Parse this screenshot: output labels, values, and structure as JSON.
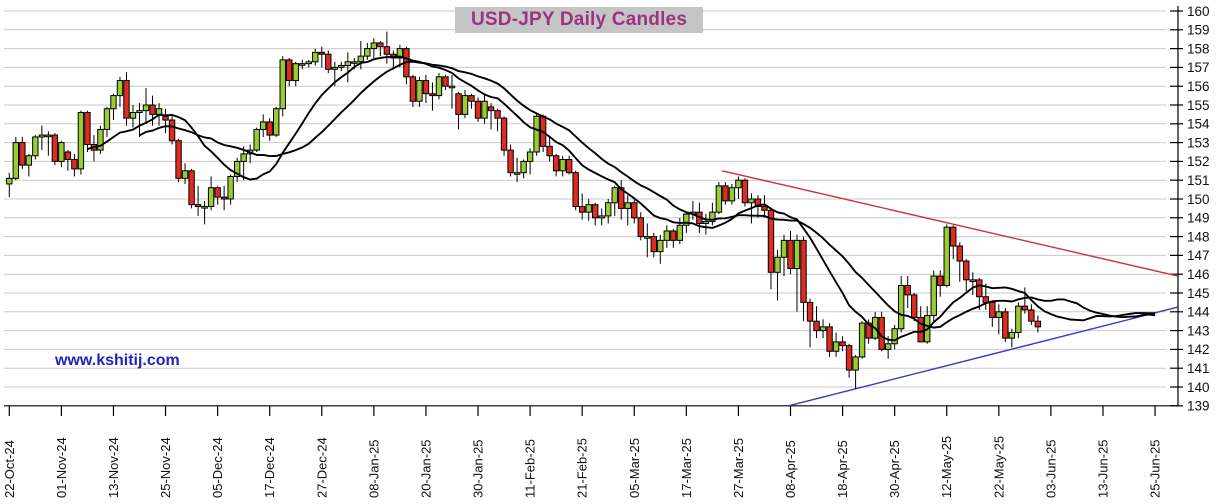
{
  "chart_data": {
    "type": "candlestick",
    "title": "USD-JPY Daily Candles",
    "watermark": "www.kshitij.com",
    "colors": {
      "up_candle": "#99cc33",
      "down_candle": "#e02b20",
      "candle_outline": "#000000",
      "moving_average": "#000000",
      "resistance_line": "#cc3333",
      "support_line": "#3a3abd",
      "gridline": "#c9c9c9",
      "axis": "#000000",
      "tick_label": "#111111",
      "title_color": "#9c3382",
      "title_bg": "#c5c5c5",
      "watermark_color": "#2222bb"
    },
    "y_axis": {
      "min": 139,
      "max": 160,
      "step": 1,
      "side": "right",
      "tick_labels": [
        "160",
        "159",
        "158",
        "157",
        "156",
        "155",
        "154",
        "153",
        "152",
        "151",
        "150",
        "149",
        "148",
        "147",
        "146",
        "145",
        "144",
        "143",
        "142",
        "141",
        "140",
        "139"
      ]
    },
    "x_axis": {
      "label_step": 8,
      "labels": [
        "22-Oct-24",
        "01-Nov-24",
        "13-Nov-24",
        "25-Nov-24",
        "05-Dec-24",
        "17-Dec-24",
        "27-Dec-24",
        "08-Jan-25",
        "20-Jan-25",
        "30-Jan-25",
        "11-Feb-25",
        "21-Feb-25",
        "05-Mar-25",
        "17-Mar-25",
        "27-Mar-25",
        "08-Apr-25",
        "18-Apr-25",
        "30-Apr-25",
        "12-May-25",
        "22-May-25",
        "03-Jun-25",
        "13-Jun-25",
        "25-Jun-25"
      ]
    },
    "candles": [
      [
        150.8,
        151.4,
        150.1,
        151.1
      ],
      [
        151.1,
        153.3,
        151.0,
        153.0
      ],
      [
        153.0,
        153.3,
        151.6,
        151.8
      ],
      [
        151.8,
        152.4,
        151.2,
        152.3
      ],
      [
        152.3,
        153.4,
        152.1,
        153.3
      ],
      [
        153.3,
        153.9,
        152.6,
        153.4
      ],
      [
        153.4,
        153.6,
        152.3,
        153.4
      ],
      [
        153.4,
        153.5,
        151.8,
        152.0
      ],
      [
        152.0,
        153.1,
        151.7,
        153.0
      ],
      [
        152.5,
        152.6,
        151.5,
        152.1
      ],
      [
        152.1,
        152.4,
        151.2,
        151.6
      ],
      [
        151.6,
        154.7,
        151.3,
        154.6
      ],
      [
        154.6,
        154.7,
        152.5,
        152.9
      ],
      [
        152.9,
        153.4,
        152.0,
        152.6
      ],
      [
        152.6,
        153.9,
        152.4,
        153.7
      ],
      [
        153.7,
        154.9,
        153.3,
        154.8
      ],
      [
        154.8,
        155.6,
        154.2,
        155.5
      ],
      [
        155.5,
        156.5,
        154.9,
        156.3
      ],
      [
        156.3,
        156.75,
        153.9,
        154.3
      ],
      [
        154.3,
        155.0,
        153.8,
        154.6
      ],
      [
        154.6,
        155.1,
        153.3,
        154.7
      ],
      [
        154.7,
        155.9,
        154.0,
        155.0
      ],
      [
        155.0,
        155.5,
        153.9,
        154.5
      ],
      [
        154.5,
        155.1,
        153.9,
        154.8
      ],
      [
        154.4,
        154.8,
        153.5,
        154.2
      ],
      [
        154.2,
        154.4,
        152.9,
        153.1
      ],
      [
        153.1,
        153.2,
        150.9,
        151.1
      ],
      [
        151.1,
        151.9,
        150.8,
        151.5
      ],
      [
        151.5,
        151.6,
        149.5,
        149.7
      ],
      [
        149.7,
        150.7,
        149.1,
        149.6
      ],
      [
        149.6,
        149.9,
        148.65,
        149.6
      ],
      [
        149.6,
        151.2,
        149.4,
        150.6
      ],
      [
        150.6,
        150.7,
        149.7,
        150.1
      ],
      [
        150.1,
        150.7,
        149.4,
        150.0
      ],
      [
        150.0,
        151.3,
        149.7,
        151.2
      ],
      [
        151.2,
        152.2,
        150.9,
        152.0
      ],
      [
        152.0,
        152.8,
        151.0,
        152.4
      ],
      [
        152.4,
        152.9,
        151.9,
        152.6
      ],
      [
        152.6,
        153.8,
        152.5,
        153.7
      ],
      [
        153.7,
        154.5,
        153.3,
        154.1
      ],
      [
        154.1,
        154.3,
        153.1,
        153.4
      ],
      [
        153.4,
        154.9,
        153.3,
        154.8
      ],
      [
        154.8,
        157.6,
        154.4,
        157.4
      ],
      [
        157.4,
        157.5,
        156.0,
        156.3
      ],
      [
        156.3,
        157.3,
        156.0,
        157.2
      ],
      [
        157.2,
        157.4,
        156.9,
        157.2
      ],
      [
        157.2,
        157.4,
        157.0,
        157.3
      ],
      [
        157.3,
        158.0,
        157.1,
        157.8
      ],
      [
        157.8,
        158.1,
        157.0,
        157.7
      ],
      [
        157.7,
        157.9,
        156.7,
        156.9
      ],
      [
        156.9,
        157.3,
        156.0,
        157.0
      ],
      [
        157.0,
        157.3,
        156.8,
        157.1
      ],
      [
        157.1,
        157.8,
        156.2,
        157.3
      ],
      [
        157.3,
        157.5,
        156.9,
        157.3
      ],
      [
        157.3,
        158.4,
        156.9,
        157.6
      ],
      [
        157.6,
        158.3,
        157.4,
        158.0
      ],
      [
        158.0,
        158.55,
        157.5,
        158.3
      ],
      [
        158.3,
        158.4,
        157.6,
        158.1
      ],
      [
        158.1,
        158.9,
        157.2,
        157.7
      ],
      [
        157.7,
        157.9,
        156.9,
        157.5
      ],
      [
        157.5,
        158.2,
        157.0,
        158.0
      ],
      [
        158.0,
        158.1,
        156.1,
        156.5
      ],
      [
        156.5,
        156.6,
        154.9,
        155.2
      ],
      [
        155.2,
        156.5,
        154.9,
        156.3
      ],
      [
        156.3,
        156.6,
        155.1,
        155.6
      ],
      [
        155.6,
        156.2,
        154.7,
        155.5
      ],
      [
        155.5,
        156.7,
        155.3,
        156.5
      ],
      [
        156.5,
        156.6,
        155.8,
        156.0
      ],
      [
        156.0,
        156.6,
        154.8,
        156.0
      ],
      [
        155.6,
        155.7,
        153.7,
        154.5
      ],
      [
        154.5,
        155.8,
        154.3,
        155.5
      ],
      [
        155.5,
        155.6,
        154.8,
        155.2
      ],
      [
        155.2,
        155.4,
        154.1,
        154.3
      ],
      [
        154.3,
        155.6,
        154.0,
        155.2
      ],
      [
        154.9,
        155.1,
        153.7,
        154.7
      ],
      [
        154.7,
        154.8,
        153.6,
        154.3
      ],
      [
        154.3,
        154.4,
        152.3,
        152.6
      ],
      [
        152.6,
        152.9,
        151.2,
        151.4
      ],
      [
        151.4,
        152.2,
        150.9,
        151.4
      ],
      [
        151.4,
        152.1,
        151.1,
        152.0
      ],
      [
        152.0,
        152.7,
        151.3,
        152.5
      ],
      [
        152.5,
        154.5,
        152.3,
        154.4
      ],
      [
        154.4,
        154.5,
        152.5,
        152.8
      ],
      [
        152.8,
        153.3,
        152.0,
        152.3
      ],
      [
        152.3,
        152.4,
        151.2,
        151.5
      ],
      [
        151.5,
        152.3,
        151.2,
        152.1
      ],
      [
        152.1,
        152.3,
        151.3,
        151.4
      ],
      [
        151.4,
        151.5,
        149.4,
        149.6
      ],
      [
        149.6,
        150.3,
        148.9,
        149.3
      ],
      [
        149.3,
        150.0,
        148.85,
        149.7
      ],
      [
        149.7,
        149.8,
        148.6,
        149.0
      ],
      [
        149.0,
        149.5,
        148.6,
        149.1
      ],
      [
        149.1,
        150.0,
        148.7,
        149.8
      ],
      [
        149.8,
        150.7,
        149.1,
        150.6
      ],
      [
        150.6,
        151.0,
        148.9,
        149.5
      ],
      [
        149.5,
        150.2,
        148.6,
        149.8
      ],
      [
        149.8,
        150.1,
        148.7,
        149.0
      ],
      [
        149.0,
        149.3,
        147.8,
        148.0
      ],
      [
        148.0,
        148.7,
        146.9,
        148.0
      ],
      [
        148.0,
        148.2,
        146.9,
        147.2
      ],
      [
        147.2,
        148.1,
        146.55,
        147.8
      ],
      [
        147.8,
        148.6,
        147.4,
        148.3
      ],
      [
        148.3,
        148.4,
        147.4,
        147.8
      ],
      [
        147.8,
        149.0,
        147.6,
        148.6
      ],
      [
        148.6,
        149.3,
        148.2,
        149.2
      ],
      [
        149.2,
        149.9,
        148.9,
        149.3
      ],
      [
        149.3,
        149.8,
        148.2,
        148.7
      ],
      [
        148.7,
        149.2,
        148.1,
        148.8
      ],
      [
        148.8,
        149.8,
        148.6,
        149.3
      ],
      [
        149.3,
        150.9,
        149.2,
        150.7
      ],
      [
        150.7,
        150.9,
        149.7,
        149.9
      ],
      [
        149.9,
        150.8,
        149.7,
        150.6
      ],
      [
        150.6,
        151.2,
        150.0,
        151.0
      ],
      [
        151.0,
        151.1,
        149.6,
        149.8
      ],
      [
        149.8,
        150.3,
        148.7,
        150.0
      ],
      [
        150.0,
        150.2,
        149.0,
        149.6
      ],
      [
        149.6,
        150.2,
        149.0,
        149.4
      ],
      [
        149.4,
        149.5,
        145.2,
        146.1
      ],
      [
        146.1,
        147.3,
        144.6,
        146.9
      ],
      [
        146.9,
        148.1,
        145.9,
        147.8
      ],
      [
        147.8,
        148.3,
        146.0,
        146.3
      ],
      [
        146.3,
        148.1,
        144.0,
        147.8
      ],
      [
        147.8,
        148.0,
        143.5,
        144.5
      ],
      [
        144.5,
        144.7,
        142.1,
        143.5
      ],
      [
        143.5,
        144.3,
        142.6,
        143.0
      ],
      [
        143.0,
        143.6,
        142.6,
        143.2
      ],
      [
        143.2,
        143.4,
        141.6,
        141.9
      ],
      [
        141.9,
        142.9,
        141.6,
        142.4
      ],
      [
        142.4,
        142.7,
        141.9,
        142.2
      ],
      [
        142.2,
        142.3,
        140.5,
        140.9
      ],
      [
        140.9,
        141.7,
        139.9,
        141.6
      ],
      [
        141.6,
        143.5,
        141.5,
        143.4
      ],
      [
        143.4,
        143.6,
        142.3,
        142.6
      ],
      [
        142.6,
        144.0,
        142.5,
        143.7
      ],
      [
        143.7,
        144.0,
        141.9,
        142.0
      ],
      [
        142.0,
        142.7,
        141.5,
        142.3
      ],
      [
        142.3,
        143.3,
        142.0,
        143.1
      ],
      [
        143.1,
        145.9,
        142.9,
        145.4
      ],
      [
        145.4,
        145.9,
        144.2,
        144.9
      ],
      [
        144.9,
        145.0,
        143.5,
        143.7
      ],
      [
        143.7,
        144.3,
        142.4,
        142.4
      ],
      [
        142.4,
        144.3,
        142.3,
        143.8
      ],
      [
        143.8,
        146.2,
        143.5,
        145.9
      ],
      [
        145.9,
        146.2,
        144.8,
        145.4
      ],
      [
        145.4,
        148.65,
        145.3,
        148.5
      ],
      [
        148.5,
        148.6,
        146.8,
        147.5
      ],
      [
        147.5,
        147.7,
        145.6,
        146.7
      ],
      [
        146.7,
        146.8,
        145.1,
        145.7
      ],
      [
        145.7,
        146.1,
        144.9,
        145.7
      ],
      [
        145.7,
        145.8,
        144.1,
        144.8
      ],
      [
        144.8,
        145.5,
        144.1,
        144.5
      ],
      [
        144.5,
        144.6,
        143.2,
        143.7
      ],
      [
        143.7,
        144.4,
        142.8,
        144.0
      ],
      [
        144.0,
        144.2,
        142.4,
        142.6
      ],
      [
        142.6,
        143.1,
        142.1,
        142.9
      ],
      [
        142.9,
        144.5,
        142.6,
        144.3
      ],
      [
        144.3,
        145.3,
        143.9,
        144.1
      ],
      [
        144.1,
        144.4,
        143.3,
        143.5
      ],
      [
        143.5,
        143.8,
        142.9,
        143.2
      ]
    ],
    "projected_closes": [
      143.4,
      143.7,
      144.0,
      143.8,
      143.5,
      143.4,
      143.7,
      144.1,
      144.4,
      144.2,
      143.9,
      143.7,
      143.9,
      144.2,
      144.3,
      144.0,
      143.7,
      143.5
    ],
    "moving_averages": [
      {
        "name": "ma-fast",
        "period": 13
      },
      {
        "name": "ma-slow",
        "period": 21
      }
    ],
    "trendlines": [
      {
        "name": "resistance",
        "color": "#cc3333",
        "x1_index": 109.5,
        "price1": 151.5,
        "x2_index": 179.5,
        "price2": 145.9
      },
      {
        "name": "support",
        "color": "#3a3abd",
        "x1_index": 119.7,
        "price1": 139.0,
        "x2_index": 179.5,
        "price2": 144.25
      }
    ]
  }
}
